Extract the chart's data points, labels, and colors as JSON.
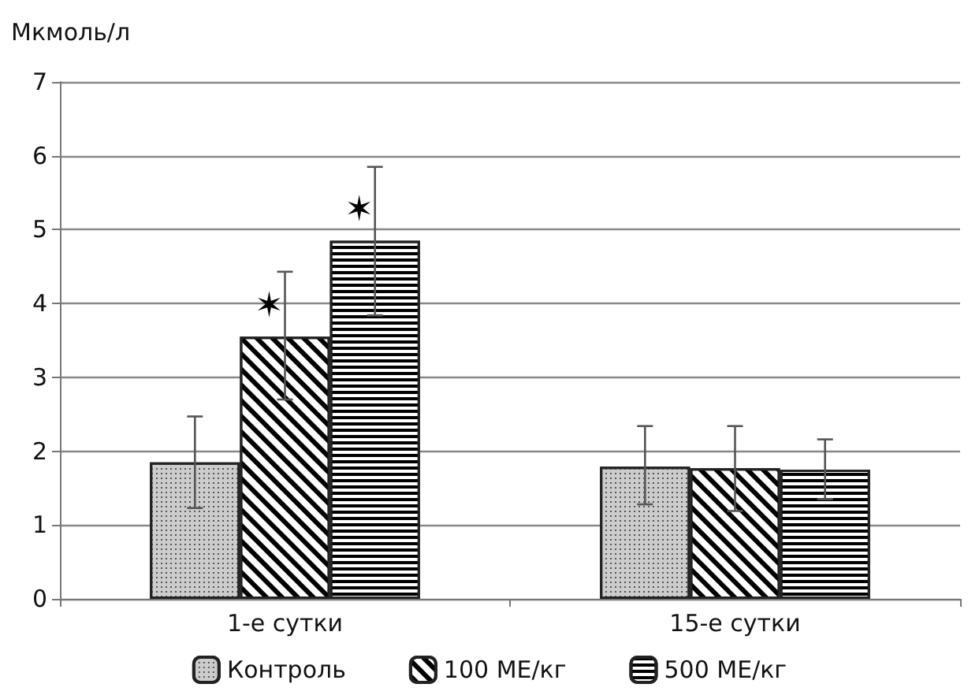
{
  "chart_data": {
    "type": "bar",
    "ylabel": "Мкмоль/л",
    "categories": [
      "1-е сутки",
      "15-е сутки"
    ],
    "series": [
      {
        "name": "Контроль",
        "color": "#cccccc",
        "values": [
          1.85,
          1.79
        ],
        "errors": [
          [
            1.23,
            2.47
          ],
          [
            1.28,
            2.34
          ]
        ]
      },
      {
        "name": "100 МЕ/кг",
        "color": "#ffffff",
        "values": [
          3.55,
          1.77
        ],
        "errors": [
          [
            2.7,
            4.43
          ],
          [
            1.19,
            2.34
          ]
        ],
        "value_labels": [
          "✶",
          null
        ]
      },
      {
        "name": "500 МЕ/кг",
        "color": "#ffffff",
        "values": [
          4.85,
          1.75
        ],
        "errors": [
          [
            3.84,
            5.85
          ],
          [
            1.35,
            2.16
          ]
        ],
        "value_labels": [
          "✶",
          null
        ]
      }
    ],
    "ylim": [
      0,
      7
    ],
    "yticks": [
      0,
      1,
      2,
      3,
      4,
      5,
      6,
      7
    ],
    "grid": "y",
    "legend": "bottom"
  }
}
